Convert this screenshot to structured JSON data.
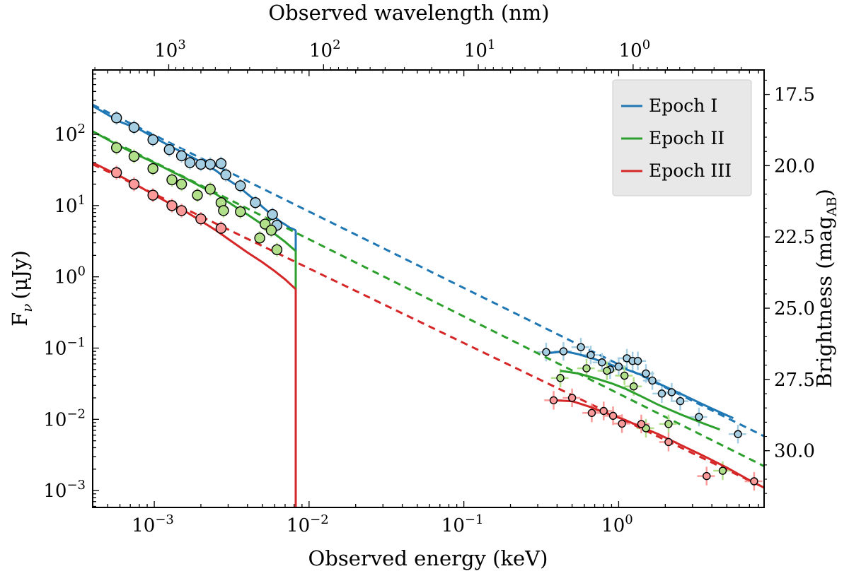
{
  "chart_data": {
    "type": "scatter",
    "title": "",
    "xlabel": "Observed energy (keV)",
    "ylabel": "F",
    "ylabel_symbol": "ν",
    "ylabel_unit": "(μJy)",
    "top_xlabel": "Observed wavelength (nm)",
    "right_ylabel": "Brightness (mag",
    "right_ylabel_sub": "AB",
    "right_ylabel_close": ")",
    "xscale": "log",
    "yscale": "log",
    "xlim": [
      0.0004,
      8.7
    ],
    "ylim": [
      0.00058,
      800
    ],
    "x_ticks": [
      {
        "value": 0.001,
        "base": "10",
        "exp": "−3"
      },
      {
        "value": 0.01,
        "base": "10",
        "exp": "−2"
      },
      {
        "value": 0.1,
        "base": "10",
        "exp": "−1"
      },
      {
        "value": 1,
        "base": "10",
        "exp": "0"
      }
    ],
    "y_ticks": [
      {
        "value": 0.001,
        "base": "10",
        "exp": "−3"
      },
      {
        "value": 0.01,
        "base": "10",
        "exp": "−2"
      },
      {
        "value": 0.1,
        "base": "10",
        "exp": "−1"
      },
      {
        "value": 1,
        "base": "10",
        "exp": "0"
      },
      {
        "value": 10,
        "base": "10",
        "exp": "1"
      },
      {
        "value": 100,
        "base": "10",
        "exp": "2"
      }
    ],
    "top_ticks": [
      {
        "wavelength_nm": 1000,
        "base": "10",
        "exp": "3"
      },
      {
        "wavelength_nm": 100,
        "base": "10",
        "exp": "2"
      },
      {
        "wavelength_nm": 10,
        "base": "10",
        "exp": "1"
      },
      {
        "wavelength_nm": 1,
        "base": "10",
        "exp": "0"
      }
    ],
    "right_ticks": [
      {
        "mag": 17.5,
        "label": "17.5"
      },
      {
        "mag": 20.0,
        "label": "20.0"
      },
      {
        "mag": 22.5,
        "label": "22.5"
      },
      {
        "mag": 25.0,
        "label": "25.0"
      },
      {
        "mag": 27.5,
        "label": "27.5"
      },
      {
        "mag": 30.0,
        "label": "30.0"
      }
    ],
    "legend": {
      "position": "top-right",
      "entries": [
        "Epoch I",
        "Epoch II",
        "Epoch III"
      ]
    },
    "series": [
      {
        "name": "Epoch I",
        "color": "#1f77b4",
        "marker_color": "#a6cee3",
        "powerlaw": {
          "x": [
            0.0004,
            8.7
          ],
          "y": [
            260,
            0.0058
          ]
        },
        "model_optical": {
          "x": [
            0.0004,
            0.0006,
            0.0008,
            0.001,
            0.0013,
            0.0016,
            0.002,
            0.0025,
            0.003,
            0.0035,
            0.004,
            0.0045,
            0.005,
            0.0055,
            0.006,
            0.0065,
            0.007,
            0.0075,
            0.0082
          ],
          "y": [
            250,
            150,
            118,
            90,
            66,
            53,
            41,
            31,
            23,
            18.5,
            14.5,
            11.8,
            9.6,
            8.0,
            6.9,
            6.0,
            5.4,
            4.9,
            4.5
          ]
        },
        "model_drop": {
          "x": [
            0.0082,
            0.0082
          ],
          "y": [
            4.5,
            1.75
          ]
        },
        "model_xray": {
          "x": [
            0.35,
            0.45,
            0.55,
            0.7,
            0.9,
            1.1,
            1.4,
            1.8,
            2.5,
            3.5,
            4.5,
            5.5
          ],
          "y": [
            0.085,
            0.09,
            0.082,
            0.07,
            0.058,
            0.051,
            0.042,
            0.032,
            0.023,
            0.0162,
            0.0126,
            0.0104
          ]
        },
        "points": [
          {
            "x": 0.00057,
            "y": 170
          },
          {
            "x": 0.00074,
            "y": 125
          },
          {
            "x": 0.00098,
            "y": 84
          },
          {
            "x": 0.00125,
            "y": 61
          },
          {
            "x": 0.0015,
            "y": 50
          },
          {
            "x": 0.0017,
            "y": 40
          },
          {
            "x": 0.002,
            "y": 38
          },
          {
            "x": 0.0023,
            "y": 38
          },
          {
            "x": 0.0027,
            "y": 39
          },
          {
            "x": 0.0029,
            "y": 27
          },
          {
            "x": 0.0036,
            "y": 19
          },
          {
            "x": 0.0045,
            "y": 11
          },
          {
            "x": 0.0058,
            "y": 7.5
          },
          {
            "x": 0.0062,
            "y": 5.3
          },
          {
            "x": 0.34,
            "y": 0.088
          },
          {
            "x": 0.44,
            "y": 0.09
          },
          {
            "x": 0.57,
            "y": 0.103
          },
          {
            "x": 0.66,
            "y": 0.08
          },
          {
            "x": 0.78,
            "y": 0.063
          },
          {
            "x": 0.88,
            "y": 0.05
          },
          {
            "x": 1.0,
            "y": 0.055
          },
          {
            "x": 1.13,
            "y": 0.072
          },
          {
            "x": 1.23,
            "y": 0.066
          },
          {
            "x": 1.33,
            "y": 0.066
          },
          {
            "x": 1.5,
            "y": 0.044
          },
          {
            "x": 1.65,
            "y": 0.035
          },
          {
            "x": 1.9,
            "y": 0.023
          },
          {
            "x": 2.2,
            "y": 0.024
          },
          {
            "x": 2.5,
            "y": 0.018
          },
          {
            "x": 3.3,
            "y": 0.0108
          },
          {
            "x": 5.9,
            "y": 0.0062
          }
        ]
      },
      {
        "name": "Epoch II",
        "color": "#2ca02c",
        "marker_color": "#b2df8a",
        "powerlaw": {
          "x": [
            0.0004,
            8.7
          ],
          "y": [
            110,
            0.0022
          ]
        },
        "model_optical": {
          "x": [
            0.0004,
            0.0006,
            0.0008,
            0.001,
            0.0013,
            0.0016,
            0.002,
            0.0025,
            0.003,
            0.0035,
            0.004,
            0.0045,
            0.005,
            0.0055,
            0.006,
            0.007,
            0.0082
          ],
          "y": [
            110,
            68,
            50,
            40,
            30,
            24,
            18.5,
            14.5,
            11.2,
            9.0,
            7.5,
            6.3,
            5.4,
            4.6,
            4.0,
            3.1,
            2.3
          ]
        },
        "model_drop": {
          "x": [
            0.0082,
            0.0082
          ],
          "y": [
            2.3,
            0.58
          ]
        },
        "model_xray": {
          "x": [
            0.42,
            0.55,
            0.7,
            0.9,
            1.1,
            1.4,
            1.8,
            2.5,
            3.5,
            4.5
          ],
          "y": [
            0.048,
            0.044,
            0.038,
            0.032,
            0.027,
            0.021,
            0.016,
            0.0118,
            0.0088,
            0.0072
          ]
        },
        "points": [
          {
            "x": 0.00057,
            "y": 65
          },
          {
            "x": 0.00074,
            "y": 49
          },
          {
            "x": 0.00098,
            "y": 33
          },
          {
            "x": 0.0013,
            "y": 23
          },
          {
            "x": 0.0015,
            "y": 20
          },
          {
            "x": 0.0019,
            "y": 14
          },
          {
            "x": 0.0023,
            "y": 17
          },
          {
            "x": 0.0027,
            "y": 11
          },
          {
            "x": 0.0028,
            "y": 8.5
          },
          {
            "x": 0.0036,
            "y": 8.2
          },
          {
            "x": 0.0048,
            "y": 3.5
          },
          {
            "x": 0.0052,
            "y": 5.5
          },
          {
            "x": 0.0057,
            "y": 4.5
          },
          {
            "x": 0.0062,
            "y": 2.4
          },
          {
            "x": 0.42,
            "y": 0.038
          },
          {
            "x": 0.62,
            "y": 0.052
          },
          {
            "x": 0.84,
            "y": 0.048
          },
          {
            "x": 1.09,
            "y": 0.041
          },
          {
            "x": 1.25,
            "y": 0.029
          },
          {
            "x": 1.5,
            "y": 0.0075
          },
          {
            "x": 2.1,
            "y": 0.0086
          },
          {
            "x": 4.7,
            "y": 0.0019
          }
        ]
      },
      {
        "name": "Epoch III",
        "color": "#d62728",
        "marker_color": "#fb9a99",
        "powerlaw": {
          "x": [
            0.0004,
            8.7
          ],
          "y": [
            38,
            0.0011
          ]
        },
        "model_optical": {
          "x": [
            0.0004,
            0.0006,
            0.0008,
            0.001,
            0.0013,
            0.0016,
            0.002,
            0.0025,
            0.003,
            0.004,
            0.005,
            0.006,
            0.007,
            0.0082
          ],
          "y": [
            40,
            26,
            18.5,
            14,
            10.3,
            8.2,
            6.1,
            4.5,
            3.4,
            2.2,
            1.6,
            1.2,
            0.92,
            0.67
          ]
        },
        "model_drop": {
          "x": [
            0.0082,
            0.0082
          ],
          "y": [
            0.67,
            0.00058
          ]
        },
        "model_xray": {
          "x": [
            0.38,
            0.5,
            0.65,
            0.85,
            1.1,
            1.4,
            1.8,
            2.5,
            3.5,
            5.0,
            7.0,
            8.7
          ],
          "y": [
            0.0185,
            0.018,
            0.015,
            0.012,
            0.0098,
            0.0078,
            0.0062,
            0.0044,
            0.0031,
            0.0021,
            0.0014,
            0.0011
          ]
        },
        "points": [
          {
            "x": 0.00057,
            "y": 29
          },
          {
            "x": 0.00074,
            "y": 20
          },
          {
            "x": 0.00098,
            "y": 14
          },
          {
            "x": 0.0013,
            "y": 10
          },
          {
            "x": 0.0015,
            "y": 8.5
          },
          {
            "x": 0.002,
            "y": 6.5
          },
          {
            "x": 0.0027,
            "y": 4.8
          },
          {
            "x": 0.38,
            "y": 0.0185
          },
          {
            "x": 0.5,
            "y": 0.02
          },
          {
            "x": 0.67,
            "y": 0.0123
          },
          {
            "x": 0.8,
            "y": 0.0131
          },
          {
            "x": 0.92,
            "y": 0.0112
          },
          {
            "x": 1.05,
            "y": 0.0087
          },
          {
            "x": 1.4,
            "y": 0.0086
          },
          {
            "x": 2.1,
            "y": 0.0048
          },
          {
            "x": 3.7,
            "y": 0.0016
          },
          {
            "x": 7.5,
            "y": 0.00135
          }
        ]
      }
    ]
  }
}
